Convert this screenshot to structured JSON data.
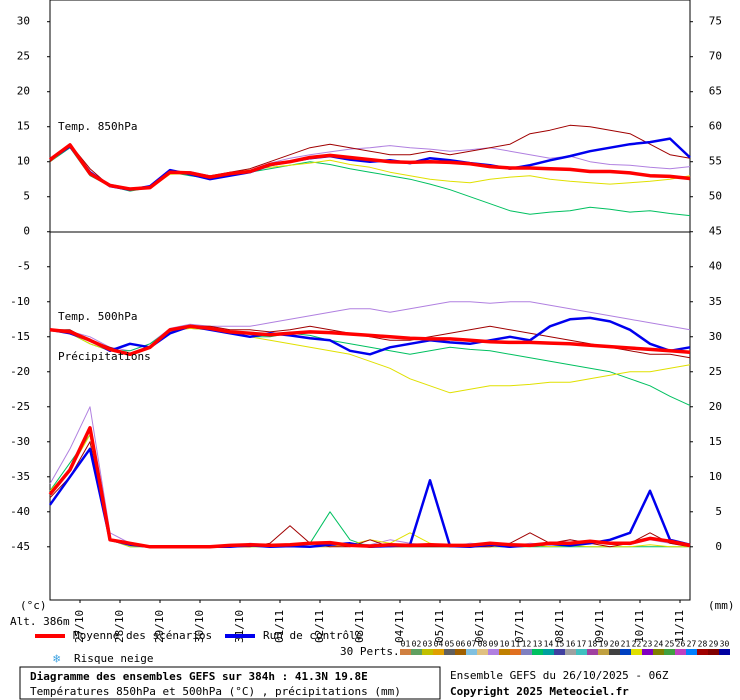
{
  "chart_data": {
    "type": "line",
    "title": "Diagramme des ensembles GEFS sur 384h : 41.3N 19.8E",
    "subtitle": "Températures 850hPa et 500hPa (°C) , précipitations (mm)",
    "run_label": "Ensemble GEFS du 26/10/2025 - 06Z",
    "copyright": "Copyright 2025 Meteociel.fr",
    "y_axis_label": "(°c)",
    "y2_axis_label": "(mm)",
    "altitude": "Alt. 386m",
    "snow_label": "Risque neige",
    "panel_labels": [
      "Temp. 850hPa",
      "Temp. 500hPa",
      "Précipitations"
    ],
    "x": [
      0,
      12,
      24,
      36,
      48,
      60,
      72,
      84,
      96,
      108,
      120,
      132,
      144,
      156,
      168,
      180,
      192,
      204,
      216,
      228,
      240,
      252,
      264,
      276,
      288,
      300,
      312,
      324,
      336,
      348,
      360,
      372,
      384
    ],
    "xlim": [
      0,
      384
    ],
    "xticks": [
      {
        "value": 18,
        "label": "27/10"
      },
      {
        "value": 42,
        "label": "28/10"
      },
      {
        "value": 66,
        "label": "29/10"
      },
      {
        "value": 90,
        "label": "30/10"
      },
      {
        "value": 114,
        "label": "31/10"
      },
      {
        "value": 138,
        "label": "01/11"
      },
      {
        "value": 162,
        "label": "02/11"
      },
      {
        "value": 186,
        "label": "03/11"
      },
      {
        "value": 210,
        "label": "04/11"
      },
      {
        "value": 234,
        "label": "05/11"
      },
      {
        "value": 258,
        "label": "06/11"
      },
      {
        "value": 282,
        "label": "07/11"
      },
      {
        "value": 306,
        "label": "08/11"
      },
      {
        "value": 330,
        "label": "09/11"
      },
      {
        "value": 354,
        "label": "10/11"
      },
      {
        "value": 378,
        "label": "11/11"
      }
    ],
    "ylim": [
      -52.6,
      33.1
    ],
    "yticks": [
      30,
      25,
      20,
      15,
      10,
      5,
      0,
      -5,
      -10,
      -15,
      -20,
      -25,
      -30,
      -35,
      -40,
      -45
    ],
    "y2lim": [
      -7.6,
      78.1
    ],
    "y2ticks": [
      75,
      70,
      65,
      60,
      55,
      50,
      45,
      40,
      35,
      30,
      25,
      20,
      15,
      10,
      5,
      0
    ],
    "series": [
      {
        "name": "Run de contrôle",
        "color": "#0000ee",
        "t850": [
          10.3,
          12.2,
          8.5,
          6.5,
          6.0,
          6.5,
          8.8,
          8.2,
          7.5,
          8.0,
          8.5,
          9.5,
          10.0,
          10.5,
          10.8,
          10.3,
          10.0,
          10.2,
          9.8,
          10.5,
          10.2,
          9.8,
          9.5,
          9.0,
          9.5,
          10.2,
          10.8,
          11.5,
          12.0,
          12.5,
          12.8,
          13.3,
          10.6
        ],
        "t500": [
          -14,
          -14.5,
          -15.5,
          -17,
          -16,
          -16.5,
          -14.5,
          -13.5,
          -14,
          -14.5,
          -15,
          -14.5,
          -14.8,
          -15.2,
          -15.5,
          -17,
          -17.5,
          -16.5,
          -16,
          -15.5,
          -15.8,
          -16,
          -15.5,
          -15,
          -15.5,
          -13.5,
          -12.5,
          -12.3,
          -12.8,
          -14,
          -16,
          -17,
          -16.5
        ],
        "precip": [
          6,
          10,
          14,
          1,
          0.3,
          0,
          0,
          0,
          0,
          0,
          0.2,
          0,
          0.1,
          0,
          0.3,
          0.5,
          0,
          0.1,
          0.3,
          9.5,
          0.1,
          0,
          0.3,
          0,
          0.2,
          0.4,
          0.2,
          0.5,
          1,
          2,
          8,
          1,
          0.3
        ]
      },
      {
        "name": "Moyenne des scénarios",
        "color": "#ff0000",
        "t850": [
          10.3,
          12.4,
          8.3,
          6.6,
          6.1,
          6.3,
          8.5,
          8.4,
          7.8,
          8.3,
          8.6,
          9.6,
          10.0,
          10.6,
          10.9,
          10.6,
          10.3,
          10.0,
          9.9,
          10.0,
          9.9,
          9.7,
          9.3,
          9.1,
          9.1,
          9.0,
          8.9,
          8.6,
          8.6,
          8.4,
          8.0,
          7.9,
          7.6
        ],
        "t500": [
          -14,
          -14.3,
          -15.5,
          -16.8,
          -17.5,
          -16.5,
          -14,
          -13.5,
          -13.8,
          -14.3,
          -14.5,
          -14.7,
          -14.5,
          -14.3,
          -14.4,
          -14.6,
          -14.8,
          -15,
          -15.2,
          -15.3,
          -15.3,
          -15.5,
          -15.7,
          -15.8,
          -15.8,
          -15.9,
          -16,
          -16.2,
          -16.4,
          -16.6,
          -16.8,
          -17,
          -17.2
        ],
        "precip": [
          7.5,
          11,
          17,
          1,
          0.5,
          0,
          0,
          0,
          0,
          0.2,
          0.3,
          0.2,
          0.3,
          0.5,
          0.6,
          0.2,
          0.1,
          0.3,
          0.2,
          0.3,
          0.2,
          0.2,
          0.5,
          0.3,
          0.2,
          0.5,
          0.5,
          0.8,
          0.5,
          0.5,
          1.2,
          0.8,
          0.2
        ]
      }
    ],
    "perturbations": {
      "label": "30 Perts.",
      "members": [
        {
          "name": "01",
          "color": "#d08040"
        },
        {
          "name": "02",
          "color": "#60a060"
        },
        {
          "name": "03",
          "color": "#c0c000"
        },
        {
          "name": "04",
          "color": "#e0a000"
        },
        {
          "name": "05",
          "color": "#606060"
        },
        {
          "name": "06",
          "color": "#a06000"
        },
        {
          "name": "07",
          "color": "#80c0e0"
        },
        {
          "name": "08",
          "color": "#e0c080"
        },
        {
          "name": "09",
          "color": "#b080e0",
          "t850": [
            10,
            12,
            8.5,
            6.8,
            6.2,
            6.4,
            8.4,
            8.6,
            8,
            8.2,
            8.8,
            9.8,
            10.5,
            11,
            11.4,
            11.8,
            12,
            12.3,
            12,
            11.8,
            11.5,
            11.7,
            12,
            11.5,
            11,
            10.5,
            10.8,
            10,
            9.6,
            9.5,
            9.2,
            9,
            9.3
          ],
          "t500": [
            -14,
            -14.2,
            -15,
            -16.5,
            -17,
            -16,
            -13.8,
            -13.2,
            -13.5,
            -13.5,
            -13.5,
            -13,
            -12.5,
            -12,
            -11.5,
            -11,
            -11,
            -11.5,
            -11,
            -10.5,
            -10,
            -10,
            -10.2,
            -10,
            -10,
            -10.5,
            -11,
            -11.5,
            -12,
            -12.5,
            -13,
            -13.5,
            -14
          ],
          "precip": [
            9,
            14,
            20,
            2,
            0.5,
            0,
            0,
            0,
            0,
            0,
            0.5,
            0.3,
            0.2,
            0,
            0,
            0.5,
            0.3,
            1,
            0.5,
            0.2,
            0,
            0.5,
            0.3,
            0.1,
            0.5,
            0.3,
            1,
            0.5,
            0.5,
            0.3,
            1,
            0.5,
            0
          ]
        },
        {
          "name": "10",
          "color": "#c08000"
        },
        {
          "name": "11",
          "color": "#e07020"
        },
        {
          "name": "12",
          "color": "#8080c0"
        },
        {
          "name": "13",
          "color": "#00c060",
          "t850": [
            10,
            12,
            8,
            6.5,
            5.8,
            6.3,
            8.5,
            8,
            7.6,
            8.2,
            8.5,
            9,
            9.5,
            10,
            9.6,
            9,
            8.5,
            8,
            7.5,
            6.8,
            6,
            5,
            4,
            3,
            2.5,
            2.8,
            3,
            3.5,
            3.2,
            2.8,
            3,
            2.6,
            2.3
          ],
          "t500": [
            -14,
            -14.5,
            -16,
            -17,
            -17,
            -16,
            -14,
            -13.8,
            -14,
            -14.5,
            -15,
            -15,
            -14.5,
            -14.8,
            -15.5,
            -16,
            -16.5,
            -17,
            -17.5,
            -17,
            -16.5,
            -16.8,
            -17,
            -17.5,
            -18,
            -18.5,
            -19,
            -19.5,
            -20,
            -21,
            -22,
            -23.5,
            -24.8
          ],
          "precip": [
            8,
            12,
            16,
            1,
            0,
            0,
            0,
            0,
            0,
            0,
            0,
            0,
            0,
            0.5,
            5,
            1,
            0,
            0,
            0,
            0,
            0,
            0,
            0,
            0,
            0,
            0,
            0,
            0,
            0,
            0,
            0,
            0,
            0
          ]
        },
        {
          "name": "14",
          "color": "#00a0a0"
        },
        {
          "name": "15",
          "color": "#4040a0"
        },
        {
          "name": "16",
          "color": "#a0a0a0"
        },
        {
          "name": "17",
          "color": "#40c0c0"
        },
        {
          "name": "18",
          "color": "#a040a0"
        },
        {
          "name": "19",
          "color": "#c0a040"
        },
        {
          "name": "20",
          "color": "#404040"
        },
        {
          "name": "21",
          "color": "#0040c0"
        },
        {
          "name": "22",
          "color": "#e0e000",
          "t850": [
            10,
            12.3,
            8.4,
            6.6,
            6,
            6.2,
            8.2,
            8.3,
            7.9,
            8.5,
            8.8,
            9.2,
            9.5,
            9.8,
            10.2,
            9.6,
            9.2,
            8.5,
            8,
            7.5,
            7.2,
            7,
            7.5,
            7.8,
            8,
            7.5,
            7.2,
            7,
            6.8,
            7,
            7.2,
            7.5,
            8
          ],
          "t500": [
            -14,
            -14.5,
            -16,
            -17,
            -17.5,
            -16.5,
            -14.2,
            -13.8,
            -14,
            -14.5,
            -15,
            -15.5,
            -16,
            -16.5,
            -17,
            -17.5,
            -18.5,
            -19.5,
            -21,
            -22,
            -23,
            -22.5,
            -22,
            -22,
            -21.8,
            -21.5,
            -21.5,
            -21,
            -20.5,
            -20,
            -20,
            -19.5,
            -19
          ],
          "precip": [
            8,
            11,
            16,
            1,
            0,
            0,
            0,
            0,
            0,
            0,
            0,
            0,
            0,
            0,
            0,
            0.3,
            1,
            0.5,
            2,
            0.5,
            0,
            0,
            0,
            0,
            0.3,
            0,
            0.2,
            0,
            0,
            0,
            0.3,
            0,
            0
          ]
        },
        {
          "name": "23",
          "color": "#8000c0"
        },
        {
          "name": "24",
          "color": "#808000"
        },
        {
          "name": "25",
          "color": "#40a040"
        },
        {
          "name": "26",
          "color": "#c040c0"
        },
        {
          "name": "27",
          "color": "#0080ff"
        },
        {
          "name": "28",
          "color": "#a00000",
          "t850": [
            10,
            12.5,
            9,
            6.5,
            6,
            6.5,
            8.5,
            8.5,
            8,
            8.5,
            9,
            10,
            11,
            12,
            12.5,
            12,
            11.5,
            11,
            11,
            11.5,
            11,
            11.5,
            12,
            12.5,
            14,
            14.5,
            15.2,
            15,
            14.5,
            14,
            12.5,
            11,
            10.5
          ],
          "t500": [
            -14,
            -14,
            -15.5,
            -16.5,
            -17.5,
            -16.5,
            -14,
            -13.5,
            -13.5,
            -14,
            -14,
            -14.3,
            -14,
            -13.5,
            -14,
            -14.5,
            -15,
            -15.5,
            -15.5,
            -15,
            -14.5,
            -14,
            -13.5,
            -14,
            -14.5,
            -15,
            -15.5,
            -16,
            -16.5,
            -17,
            -17.5,
            -17.5,
            -18
          ],
          "precip": [
            7,
            10,
            15,
            1,
            0.5,
            0,
            0,
            0,
            0,
            0,
            0,
            0.5,
            3,
            0.5,
            0,
            0,
            1,
            0,
            0,
            0,
            0,
            0,
            0,
            0.5,
            2,
            0.5,
            1,
            0.5,
            0,
            0.5,
            2,
            0.5,
            0
          ]
        },
        {
          "name": "29",
          "color": "#800000"
        },
        {
          "name": "30",
          "color": "#0000a0"
        }
      ]
    }
  }
}
